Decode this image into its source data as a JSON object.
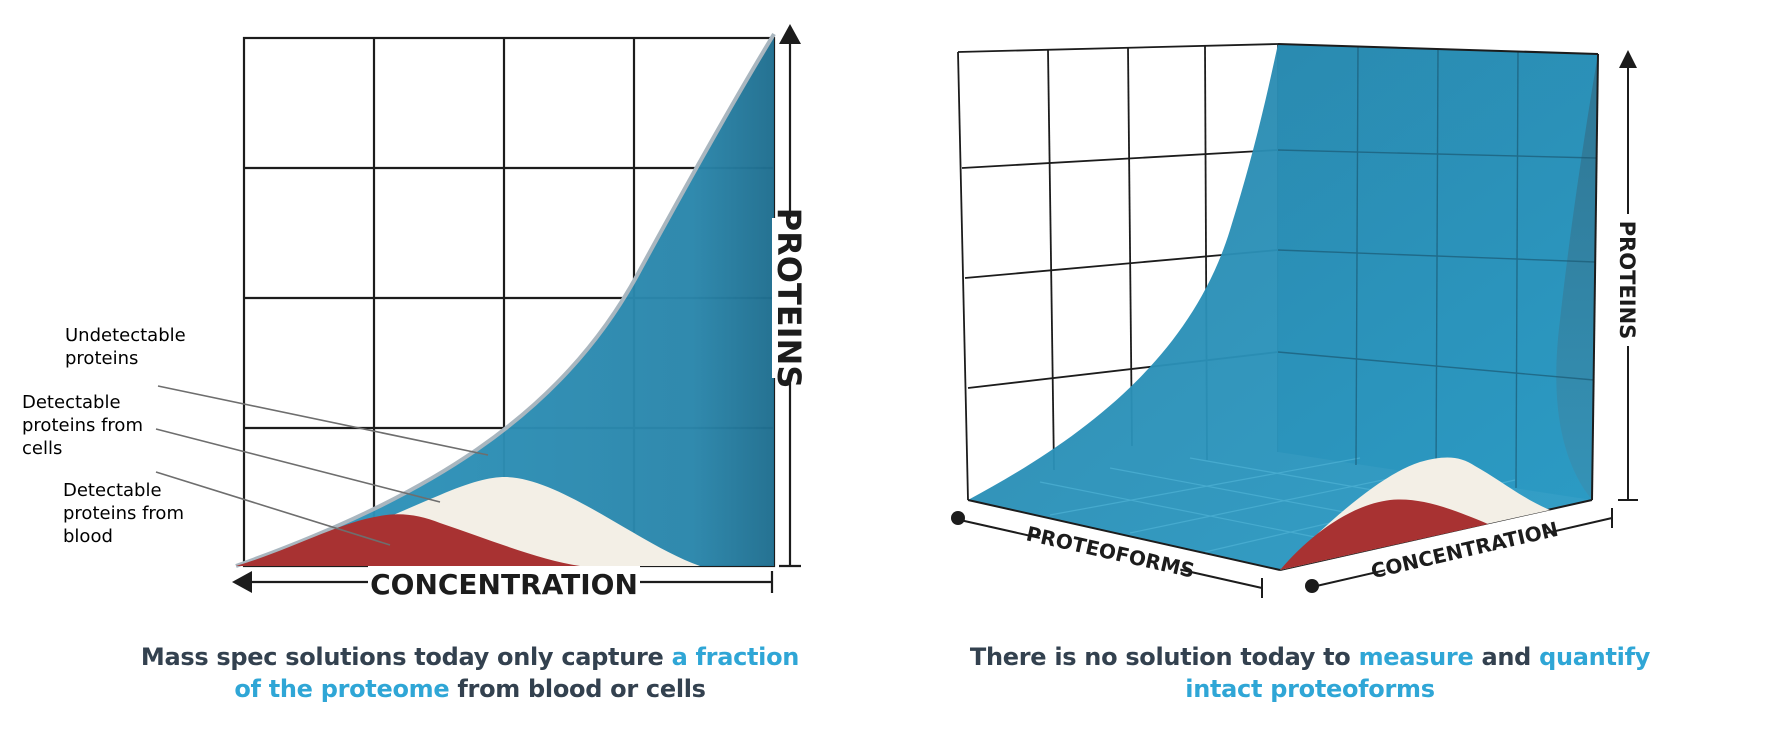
{
  "left_diagram": {
    "x_axis": "CONCENTRATION",
    "y_axis": "PROTEINS",
    "labels": {
      "undetectable": [
        "Undetectable",
        "proteins"
      ],
      "detectable_cells": [
        "Detectable",
        "proteins from",
        "cells"
      ],
      "detectable_blood": [
        "Detectable",
        "proteins from",
        "blood"
      ]
    },
    "caption": {
      "part1": "Mass spec solutions today only capture ",
      "hl1": "a fraction",
      "hl2": "of the proteome",
      "part2": " from blood or cells"
    }
  },
  "right_diagram": {
    "x_axis": "PROTEOFORMS",
    "z_axis": "CONCENTRATION",
    "y_axis": "PROTEINS",
    "caption": {
      "part1": "There is no solution today to ",
      "hl1": "measure",
      "part2": " and ",
      "hl2": "quantify",
      "hl3": "intact proteoforms"
    }
  },
  "colors": {
    "blue": "#2a8db3",
    "cream": "#f3efe6",
    "red": "#a83232",
    "caption_dark": "#33414f",
    "caption_highlight": "#2fa6d6"
  }
}
